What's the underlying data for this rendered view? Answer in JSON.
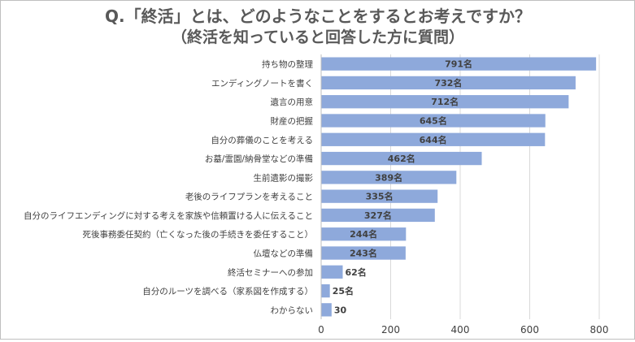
{
  "chart_data": {
    "type": "bar",
    "orientation": "horizontal",
    "title": "Q.「終活」とは、どのようなことをするとお考えですか？",
    "subtitle": "（終活を知っていると回答した方に質問）",
    "categories": [
      "持ち物の整理",
      "エンディングノートを書く",
      "遺言の用意",
      "財産の把握",
      "自分の葬儀のことを考える",
      "お墓/霊園/納骨堂などの準備",
      "生前遺影の撮影",
      "老後のライフプランを考えること",
      "自分のライフエンディングに対する考えを家族や信頼置ける人に伝えること",
      "死後事務委任契約（亡くなった後の手続きを委任すること）",
      "仏壇などの準備",
      "終活セミナーへの参加",
      "自分のルーツを調べる（家系図を作成する）",
      "わからない"
    ],
    "values": [
      791,
      732,
      712,
      645,
      644,
      462,
      389,
      335,
      327,
      244,
      243,
      62,
      25,
      30
    ],
    "data_labels": [
      "791名",
      "732名",
      "712名",
      "645名",
      "644名",
      "462名",
      "389名",
      "335名",
      "327名",
      "244名",
      "243名",
      "62名",
      "25名",
      "30"
    ],
    "xlim": [
      0,
      800
    ],
    "xticks": [
      0,
      200,
      400,
      600,
      800
    ],
    "grid": true,
    "xlabel": "",
    "ylabel": "",
    "colors": {
      "bar": "#8EA9DB",
      "grid": "#d9d9d9",
      "text": "#404040",
      "title": "#595959"
    }
  }
}
